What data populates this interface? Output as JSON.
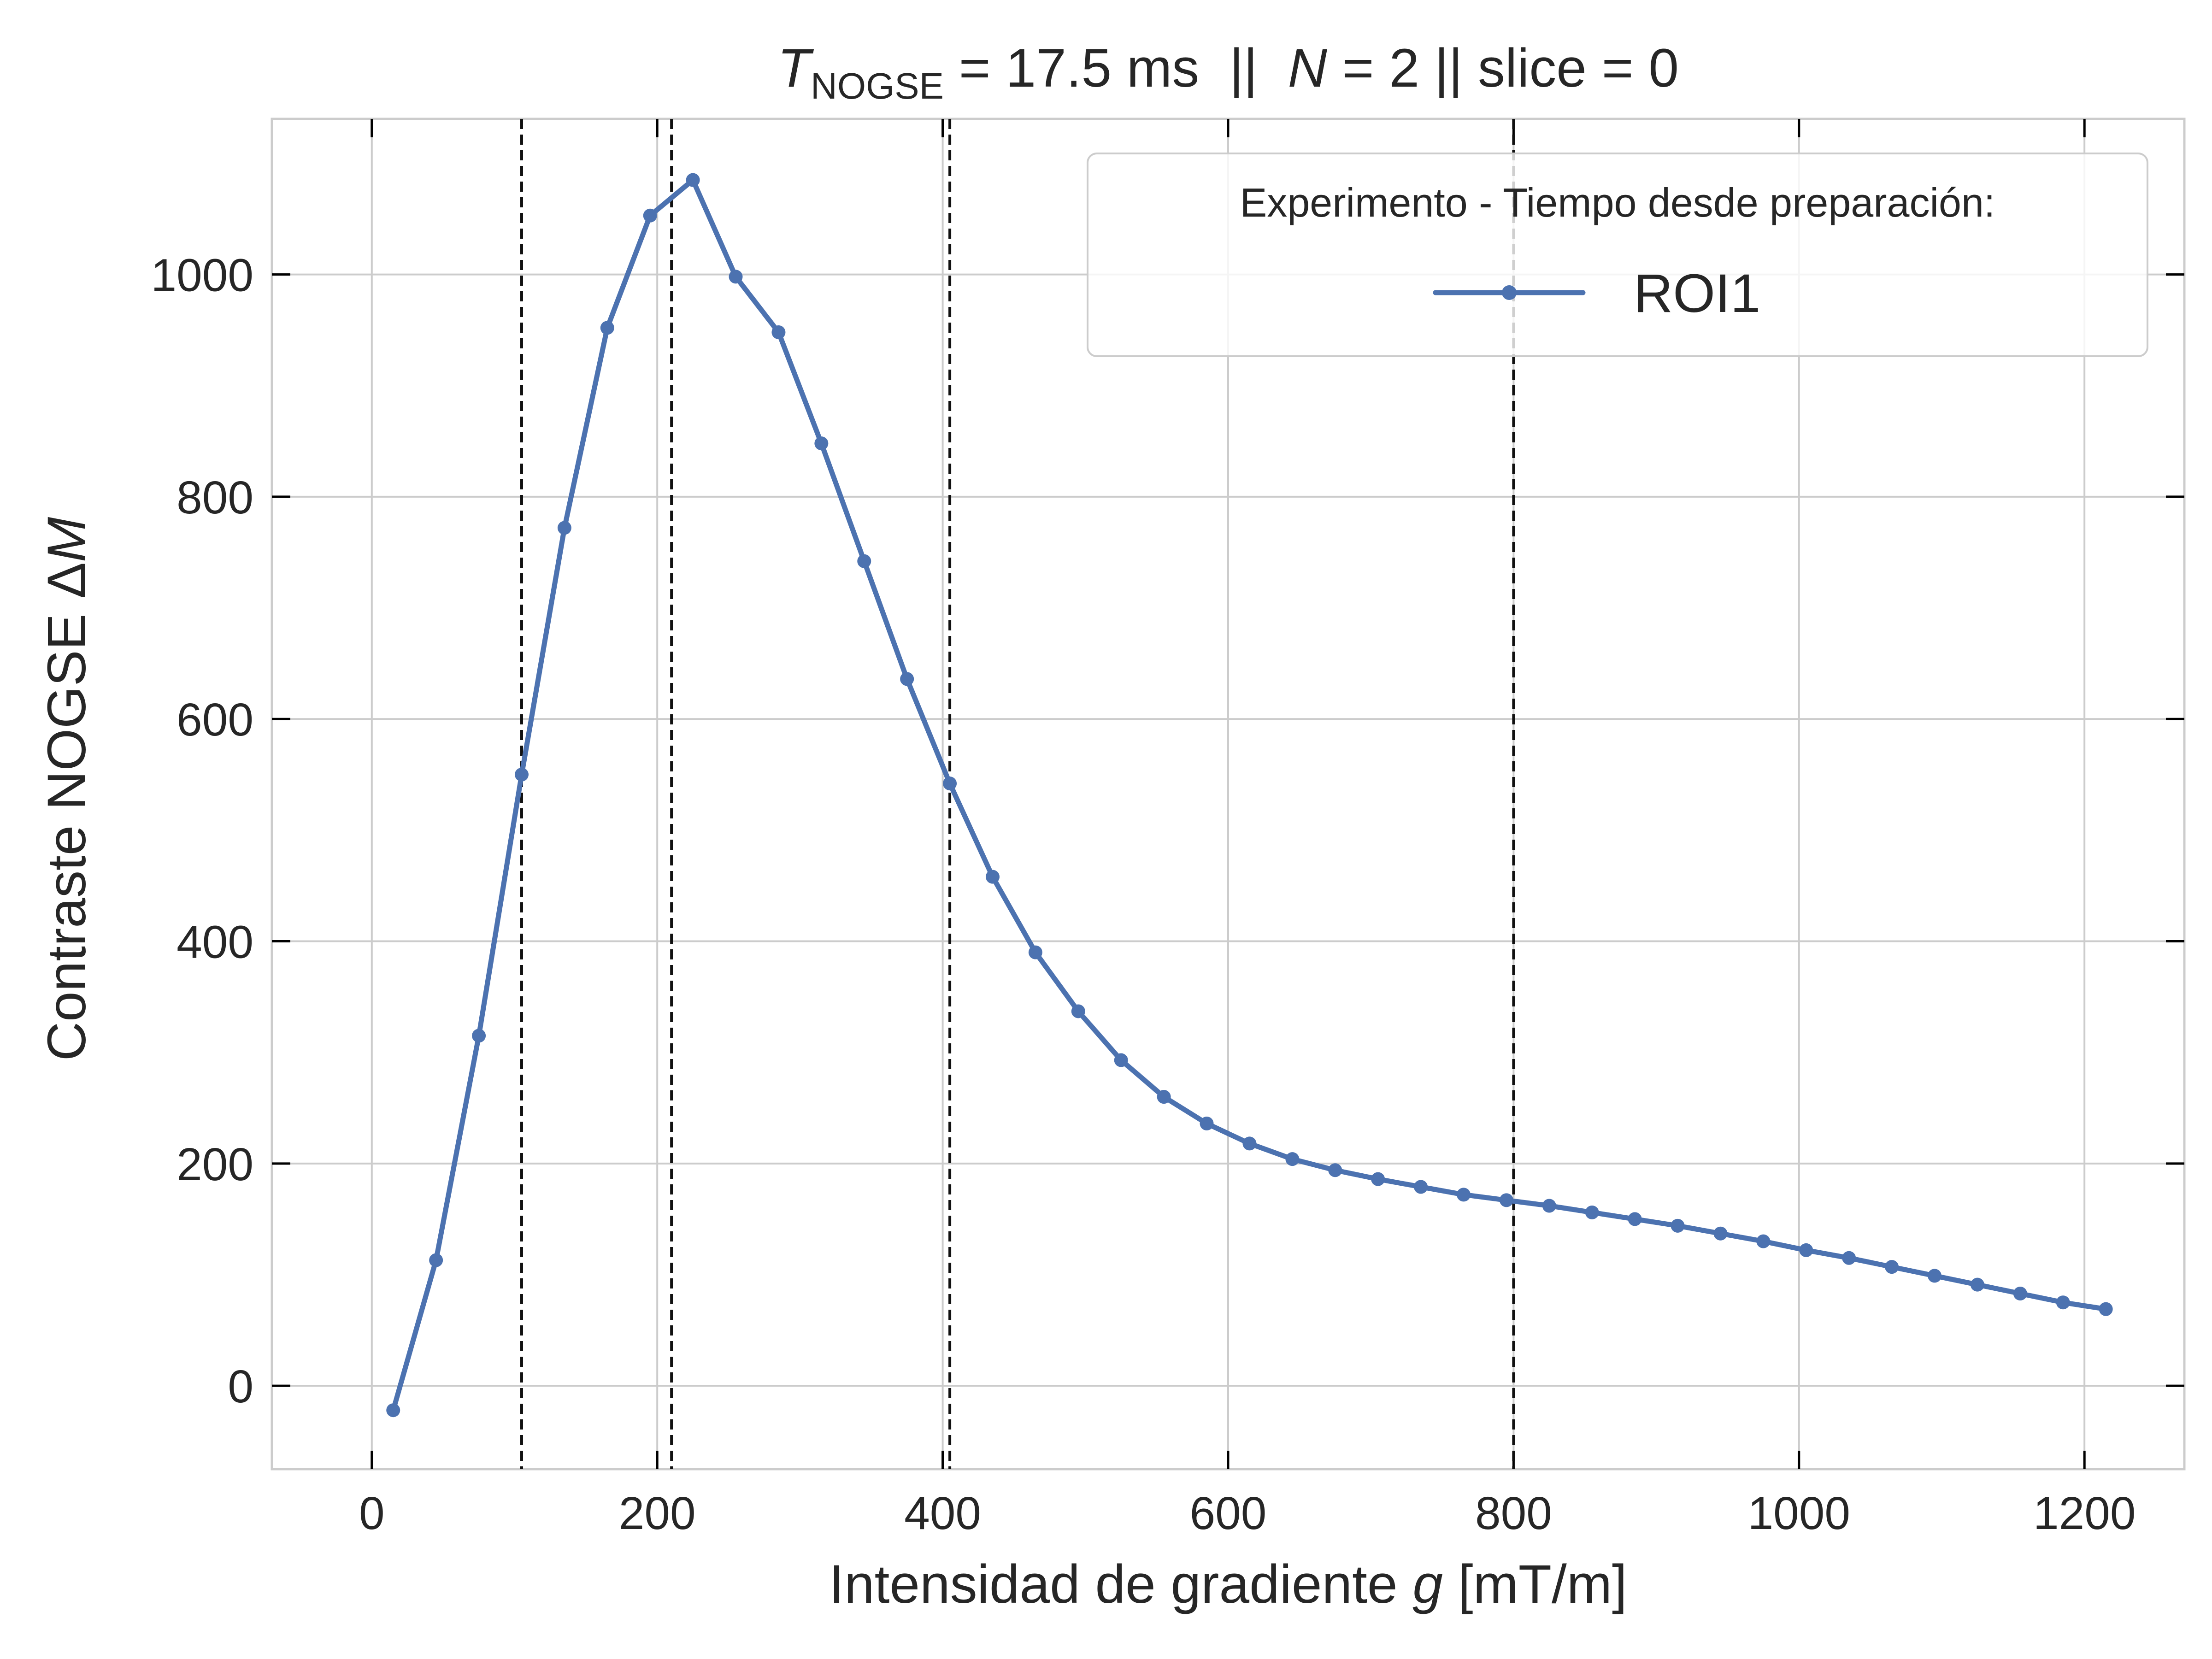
{
  "chart_data": {
    "type": "line",
    "title": {
      "t_symbol": "T",
      "t_subscript": "NOGSE",
      "t_rest": " = 17.5 ms  ||  ",
      "n_symbol": "N",
      "n_rest": " = 2 || slice = 0"
    },
    "xlabel": {
      "prefix": "Intensidad de gradiente ",
      "symbol": "g",
      "suffix": " [mT/m]"
    },
    "ylabel": {
      "prefix": "Contraste NOGSE Δ",
      "symbol": "M"
    },
    "xlim": [
      -70,
      1270
    ],
    "ylim": [
      -75,
      1140
    ],
    "xticks": [
      0,
      200,
      400,
      600,
      800,
      1000,
      1200
    ],
    "yticks": [
      0,
      200,
      400,
      600,
      800,
      1000
    ],
    "grid": true,
    "legend": {
      "title": "Experimento - Tiempo desde preparación:",
      "placement": "upper right"
    },
    "vlines": [
      105,
      210,
      405,
      800
    ],
    "series": [
      {
        "name": "ROI1",
        "color": "#4c72b0",
        "marker": "circle",
        "x": [
          15,
          45,
          75,
          105,
          135,
          165,
          195,
          225,
          255,
          285,
          315,
          345,
          375,
          405,
          435,
          465,
          495,
          525,
          555,
          585,
          615,
          645,
          675,
          705,
          735,
          765,
          795,
          825,
          855,
          885,
          915,
          945,
          975,
          1005,
          1035,
          1065,
          1095,
          1125,
          1155,
          1185,
          1215
        ],
        "y": [
          -22,
          113,
          315,
          550,
          772,
          952,
          1053,
          1085,
          998,
          948,
          848,
          742,
          636,
          542,
          458,
          390,
          337,
          293,
          260,
          236,
          218,
          204,
          194,
          186,
          179,
          172,
          167,
          162,
          156,
          150,
          144,
          137,
          130,
          122,
          115,
          107,
          99,
          91,
          83,
          75,
          69
        ]
      }
    ]
  }
}
